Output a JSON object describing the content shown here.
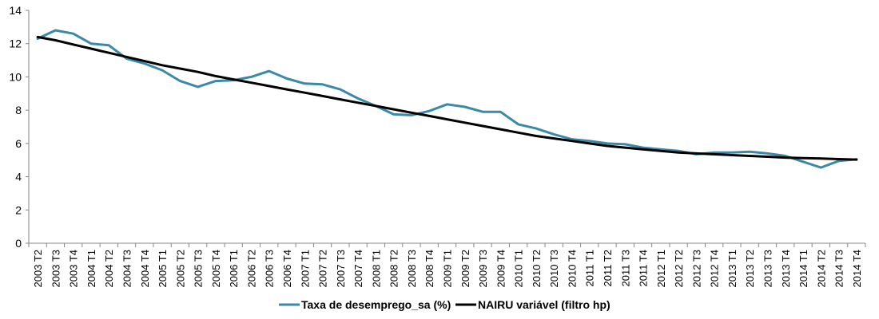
{
  "chart_data": {
    "type": "line",
    "title": "",
    "xlabel": "",
    "ylabel": "",
    "ylim": [
      0,
      14
    ],
    "yticks": [
      0,
      2,
      4,
      6,
      8,
      10,
      12,
      14
    ],
    "grid": false,
    "legend_position": "bottom",
    "categories": [
      "2003 T2",
      "2003 T3",
      "2003 T4",
      "2004 T1",
      "2004 T2",
      "2004 T3",
      "2004 T4",
      "2005 T1",
      "2005 T2",
      "2005 T3",
      "2005 T4",
      "2006 T1",
      "2006 T2",
      "2006 T3",
      "2006 T4",
      "2007 T1",
      "2007 T2",
      "2007 T3",
      "2007 T4",
      "2008 T1",
      "2008 T2",
      "2008 T3",
      "2008 T4",
      "2009 T1",
      "2009 T2",
      "2009 T3",
      "2009 T4",
      "2010 T1",
      "2010 T2",
      "2010 T3",
      "2010 T4",
      "2011 T1",
      "2011 T2",
      "2011 T3",
      "2011 T4",
      "2012 T1",
      "2012 T2",
      "2012 T3",
      "2012 T4",
      "2013 T1",
      "2013 T2",
      "2013 T3",
      "2013 T4",
      "2014 T1",
      "2014 T2",
      "2014 T3",
      "2014 T4"
    ],
    "series": [
      {
        "name": "Taxa de desemprego_sa (%)",
        "color": "#3a8aa7",
        "values": [
          12.3,
          12.8,
          12.6,
          12.0,
          11.9,
          11.1,
          10.8,
          10.4,
          9.75,
          9.4,
          9.75,
          9.8,
          10.0,
          10.35,
          9.9,
          9.6,
          9.55,
          9.25,
          8.7,
          8.25,
          7.75,
          7.7,
          7.95,
          8.35,
          8.2,
          7.9,
          7.9,
          7.15,
          6.9,
          6.55,
          6.25,
          6.15,
          6.0,
          5.95,
          5.75,
          5.65,
          5.55,
          5.35,
          5.45,
          5.45,
          5.5,
          5.4,
          5.25,
          4.9,
          4.55,
          4.95,
          5.05
        ]
      },
      {
        "name": "NAIRU variável (filtro hp)",
        "color": "#000000",
        "values": [
          12.4,
          12.2,
          11.95,
          11.7,
          11.45,
          11.2,
          10.95,
          10.7,
          10.5,
          10.3,
          10.05,
          9.85,
          9.65,
          9.45,
          9.25,
          9.05,
          8.85,
          8.65,
          8.45,
          8.25,
          8.05,
          7.85,
          7.65,
          7.45,
          7.25,
          7.05,
          6.85,
          6.65,
          6.45,
          6.3,
          6.15,
          6.0,
          5.85,
          5.75,
          5.65,
          5.55,
          5.45,
          5.4,
          5.35,
          5.3,
          5.25,
          5.2,
          5.15,
          5.12,
          5.09,
          5.06,
          5.03
        ]
      }
    ]
  }
}
